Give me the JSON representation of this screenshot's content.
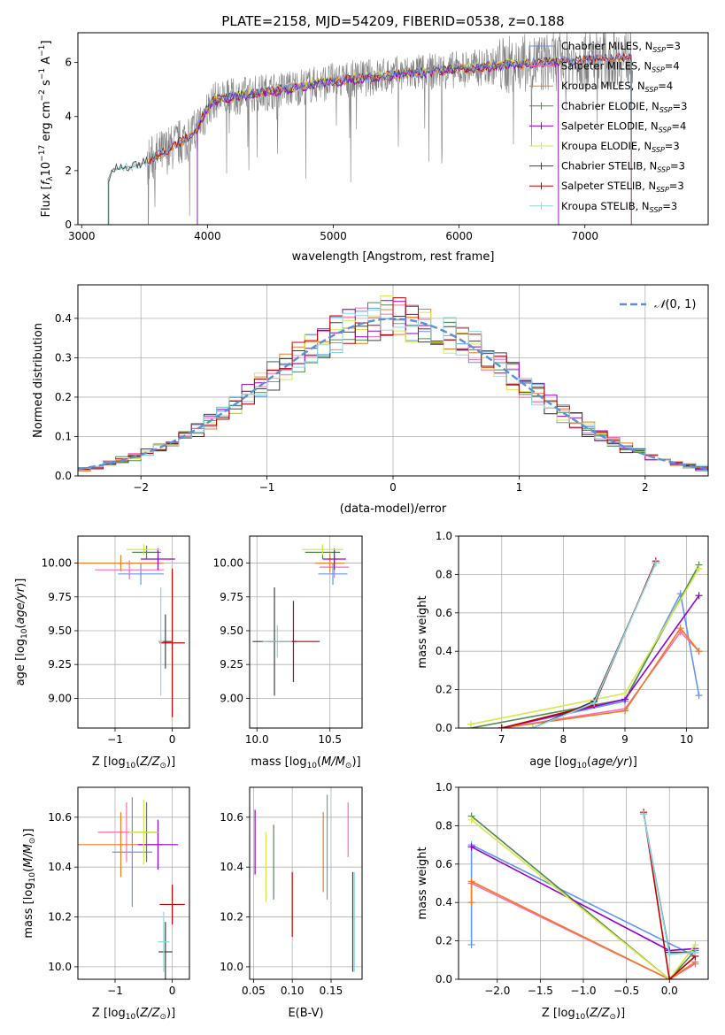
{
  "figure": {
    "title": "PLATE=2158, MJD=54209, FIBERID=0538, z=0.188"
  },
  "colors": {
    "chabrier_miles": "#6495ed",
    "salpeter_miles": "#ff69b4",
    "kroupa_miles": "#ee7b22",
    "chabrier_elodie": "#4f8a4f",
    "salpeter_elodie": "#9400d3",
    "kroupa_elodie": "#d8e84a",
    "chabrier_stelib": "#404040",
    "salpeter_stelib": "#c00000",
    "kroupa_stelib": "#88d8e0",
    "data": "#808080",
    "normal": "#5b8fd6",
    "grid": "#b0b0b0"
  },
  "legend": {
    "entries": [
      {
        "name": "Chabrier MILES",
        "suffix": "=3"
      },
      {
        "name": "Salpeter MILES",
        "suffix": "=4"
      },
      {
        "name": "Kroupa MILES",
        "suffix": "=4"
      },
      {
        "name": "Chabrier ELODIE",
        "suffix": "=3"
      },
      {
        "name": "Salpeter ELODIE",
        "suffix": "=4"
      },
      {
        "name": "Kroupa ELODIE",
        "suffix": "=3"
      },
      {
        "name": "Chabrier STELIB",
        "suffix": "=3"
      },
      {
        "name": "Salpeter STELIB",
        "suffix": "=3"
      },
      {
        "name": "Kroupa STELIB",
        "suffix": "=3"
      }
    ],
    "n_label": "N",
    "n_sub": "SSP",
    "normal_label": "(0, 1)"
  },
  "chart_data": [
    {
      "id": "spectrum",
      "type": "line",
      "xlabel": "wavelength [Angstrom, rest frame]",
      "ylabel": "Flux",
      "xlim": [
        2970,
        7980
      ],
      "ylim": [
        0,
        7.1
      ],
      "xticks": [
        3000,
        4000,
        5000,
        6000,
        7000
      ],
      "yticks": [
        0,
        2,
        4,
        6
      ],
      "grid": false,
      "legend_position": "right",
      "spectrum_start": 3210,
      "spectrum_end": 7380,
      "continuum": [
        [
          3210,
          1.7
        ],
        [
          3250,
          2.05
        ],
        [
          3400,
          2.15
        ],
        [
          3520,
          2.3
        ],
        [
          3600,
          2.55
        ],
        [
          3700,
          2.8
        ],
        [
          3800,
          3.1
        ],
        [
          3900,
          3.4
        ],
        [
          3950,
          3.9
        ],
        [
          4050,
          4.6
        ],
        [
          4300,
          4.8
        ],
        [
          4600,
          5.0
        ],
        [
          5000,
          5.3
        ],
        [
          5500,
          5.55
        ],
        [
          6000,
          5.75
        ],
        [
          6500,
          5.95
        ],
        [
          7000,
          6.1
        ],
        [
          7380,
          6.2
        ]
      ]
    },
    {
      "id": "residuals",
      "type": "bar",
      "xlabel": "(data-model)/error",
      "ylabel": "Normed distribution",
      "xlim": [
        -2.5,
        2.5
      ],
      "ylim": [
        0,
        0.485
      ],
      "xticks": [
        -2,
        -1,
        0,
        1,
        2
      ],
      "yticks": [
        0.0,
        0.1,
        0.2,
        0.3,
        0.4
      ],
      "grid": true,
      "legend_position": "top-right"
    },
    {
      "id": "age_vs_Z",
      "type": "scatter",
      "xlabel": "Z",
      "ylabel": "age",
      "xlim": [
        -1.65,
        0.3
      ],
      "ylim": [
        8.78,
        10.2
      ],
      "xticks": [
        -1,
        0
      ],
      "yticks": [
        9.0,
        9.25,
        9.5,
        9.75,
        10.0
      ],
      "grid": true,
      "points": [
        {
          "series": "chabrier_miles",
          "x": -0.55,
          "y": 9.92,
          "xerr": 0.4,
          "yerr": 0.08
        },
        {
          "series": "salpeter_miles",
          "x": -0.75,
          "y": 9.95,
          "xerr": 0.6,
          "yerr": 0.07
        },
        {
          "series": "kroupa_miles",
          "x": -0.9,
          "y": 10.0,
          "xerr": 0.75,
          "yerr": 0.06
        },
        {
          "series": "chabrier_elodie",
          "x": -0.45,
          "y": 10.08,
          "xerr": 0.25,
          "yerr": 0.05
        },
        {
          "series": "salpeter_elodie",
          "x": -0.25,
          "y": 10.03,
          "xerr": 0.3,
          "yerr": 0.08
        },
        {
          "series": "kroupa_elodie",
          "x": -0.5,
          "y": 10.1,
          "xerr": 0.3,
          "yerr": 0.04
        },
        {
          "series": "chabrier_stelib",
          "x": -0.12,
          "y": 9.42,
          "xerr": 0.12,
          "yerr": 0.2
        },
        {
          "series": "salpeter_stelib",
          "x": 0.0,
          "y": 9.41,
          "xerr": 0.22,
          "yerr": 0.55
        },
        {
          "series": "kroupa_stelib",
          "x": -0.2,
          "y": 9.42,
          "xerr": 0.04,
          "yerr": 0.4
        }
      ]
    },
    {
      "id": "age_vs_mass",
      "type": "scatter",
      "xlabel": "mass",
      "ylabel": "",
      "xlim": [
        9.95,
        10.72
      ],
      "ylim": [
        8.78,
        10.2
      ],
      "xticks": [
        10.0,
        10.5
      ],
      "yticks": [
        9.0,
        9.25,
        9.5,
        9.75,
        10.0
      ],
      "grid": true,
      "points": [
        {
          "series": "chabrier_miles",
          "x": 10.52,
          "y": 9.92,
          "xerr": 0.1,
          "yerr": 0.08
        },
        {
          "series": "salpeter_miles",
          "x": 10.53,
          "y": 9.97,
          "xerr": 0.1,
          "yerr": 0.08
        },
        {
          "series": "kroupa_miles",
          "x": 10.5,
          "y": 10.0,
          "xerr": 0.1,
          "yerr": 0.07
        },
        {
          "series": "chabrier_elodie",
          "x": 10.45,
          "y": 10.08,
          "xerr": 0.12,
          "yerr": 0.05
        },
        {
          "series": "salpeter_elodie",
          "x": 10.53,
          "y": 10.03,
          "xerr": 0.08,
          "yerr": 0.08
        },
        {
          "series": "kroupa_elodie",
          "x": 10.45,
          "y": 10.1,
          "xerr": 0.14,
          "yerr": 0.04
        },
        {
          "series": "chabrier_stelib",
          "x": 10.12,
          "y": 9.42,
          "xerr": 0.15,
          "yerr": 0.4
        },
        {
          "series": "salpeter_stelib",
          "x": 10.25,
          "y": 9.42,
          "xerr": 0.18,
          "yerr": 0.3
        },
        {
          "series": "kroupa_stelib",
          "x": 10.14,
          "y": 9.42,
          "xerr": 0.1,
          "yerr": 0.12
        }
      ]
    },
    {
      "id": "massweight_vs_age",
      "type": "line",
      "xlabel": "age",
      "ylabel": "mass weight",
      "xlim": [
        6.3,
        10.35
      ],
      "ylim": [
        0,
        1
      ],
      "xticks": [
        7,
        8,
        9,
        10
      ],
      "yticks": [
        0.0,
        0.2,
        0.4,
        0.6,
        0.8,
        1.0
      ],
      "grid": true,
      "series": [
        {
          "name": "chabrier_miles",
          "x": [
            7.0,
            9.0,
            9.9,
            10.2
          ],
          "y": [
            0.0,
            0.14,
            0.7,
            0.17
          ]
        },
        {
          "name": "salpeter_miles",
          "x": [
            7.0,
            9.0,
            9.9,
            10.2
          ],
          "y": [
            0.0,
            0.1,
            0.5,
            0.4
          ]
        },
        {
          "name": "kroupa_miles",
          "x": [
            7.0,
            9.0,
            9.9,
            10.2
          ],
          "y": [
            0.0,
            0.09,
            0.52,
            0.4
          ]
        },
        {
          "name": "chabrier_elodie",
          "x": [
            6.5,
            9.0,
            10.2
          ],
          "y": [
            0.0,
            0.15,
            0.85
          ]
        },
        {
          "name": "salpeter_elodie",
          "x": [
            7.0,
            9.0,
            10.2
          ],
          "y": [
            0.0,
            0.15,
            0.69
          ]
        },
        {
          "name": "kroupa_elodie",
          "x": [
            6.5,
            9.0,
            10.2
          ],
          "y": [
            0.02,
            0.18,
            0.83
          ]
        },
        {
          "name": "chabrier_stelib",
          "x": [
            7.5,
            8.5,
            9.5
          ],
          "y": [
            0.0,
            0.14,
            0.86
          ]
        },
        {
          "name": "salpeter_stelib",
          "x": [
            7.0,
            8.5,
            9.5
          ],
          "y": [
            0.0,
            0.12,
            0.87
          ]
        },
        {
          "name": "kroupa_stelib",
          "x": [
            7.5,
            8.5,
            9.5
          ],
          "y": [
            0.0,
            0.13,
            0.86
          ]
        }
      ]
    },
    {
      "id": "mass_vs_Z",
      "type": "scatter",
      "xlabel": "Z",
      "ylabel": "mass",
      "xlim": [
        -1.65,
        0.3
      ],
      "ylim": [
        9.95,
        10.72
      ],
      "xticks": [
        -1,
        0
      ],
      "yticks": [
        10.0,
        10.2,
        10.4,
        10.6
      ],
      "grid": true,
      "points": [
        {
          "series": "chabrier_miles",
          "x": -0.7,
          "y": 10.46,
          "xerr": 0.35,
          "yerr": 0.22
        },
        {
          "series": "salpeter_miles",
          "x": -0.8,
          "y": 10.54,
          "xerr": 0.5,
          "yerr": 0.12
        },
        {
          "series": "kroupa_miles",
          "x": -0.9,
          "y": 10.49,
          "xerr": 0.75,
          "yerr": 0.13
        },
        {
          "series": "chabrier_elodie",
          "x": -0.45,
          "y": 10.54,
          "xerr": 0.2,
          "yerr": 0.12
        },
        {
          "series": "salpeter_elodie",
          "x": -0.25,
          "y": 10.49,
          "xerr": 0.35,
          "yerr": 0.1
        },
        {
          "series": "kroupa_elodie",
          "x": -0.5,
          "y": 10.54,
          "xerr": 0.25,
          "yerr": 0.13
        },
        {
          "series": "chabrier_stelib",
          "x": -0.12,
          "y": 10.06,
          "xerr": 0.12,
          "yerr": 0.12
        },
        {
          "series": "salpeter_stelib",
          "x": 0.0,
          "y": 10.25,
          "xerr": 0.22,
          "yerr": 0.08
        },
        {
          "series": "kroupa_stelib",
          "x": -0.15,
          "y": 10.1,
          "xerr": 0.1,
          "yerr": 0.12
        }
      ]
    },
    {
      "id": "mass_vs_ebv",
      "type": "scatter",
      "xlabel": "E(B-V)",
      "ylabel": "",
      "xlim": [
        0.045,
        0.19
      ],
      "ylim": [
        9.95,
        10.72
      ],
      "xticks": [
        0.05,
        0.1,
        0.15
      ],
      "yticks": [
        10.0,
        10.2,
        10.4,
        10.6
      ],
      "grid": true,
      "points": [
        {
          "series": "chabrier_miles",
          "x": 0.145,
          "y": 10.48,
          "xerr": 0.0,
          "yerr": 0.21
        },
        {
          "series": "salpeter_miles",
          "x": 0.172,
          "y": 10.55,
          "xerr": 0.0,
          "yerr": 0.11
        },
        {
          "series": "kroupa_miles",
          "x": 0.14,
          "y": 10.46,
          "xerr": 0.0,
          "yerr": 0.16
        },
        {
          "series": "chabrier_elodie",
          "x": 0.076,
          "y": 10.42,
          "xerr": 0.0,
          "yerr": 0.15
        },
        {
          "series": "salpeter_elodie",
          "x": 0.052,
          "y": 10.5,
          "xerr": 0.0,
          "yerr": 0.13
        },
        {
          "series": "kroupa_elodie",
          "x": 0.066,
          "y": 10.4,
          "xerr": 0.0,
          "yerr": 0.14
        },
        {
          "series": "chabrier_stelib",
          "x": 0.178,
          "y": 10.18,
          "xerr": 0.0,
          "yerr": 0.2
        },
        {
          "series": "salpeter_stelib",
          "x": 0.1,
          "y": 10.25,
          "xerr": 0.0,
          "yerr": 0.13
        },
        {
          "series": "kroupa_stelib",
          "x": 0.18,
          "y": 10.18,
          "xerr": 0.0,
          "yerr": 0.2
        }
      ]
    },
    {
      "id": "massweight_vs_Z",
      "type": "line",
      "xlabel": "Z",
      "ylabel": "mass weight",
      "xlim": [
        -2.45,
        0.45
      ],
      "ylim": [
        0,
        1
      ],
      "xticks": [
        -2.0,
        -1.5,
        -1.0,
        -0.5,
        0.0
      ],
      "yticks": [
        0.0,
        0.2,
        0.4,
        0.6,
        0.8,
        1.0
      ],
      "grid": true,
      "series": [
        {
          "name": "chabrier_miles",
          "x": [
            -2.3,
            -2.3,
            0.3,
            0.0
          ],
          "y": [
            0.18,
            0.7,
            0.12,
            0.0
          ]
        },
        {
          "name": "salpeter_miles",
          "x": [
            -2.3,
            0.0,
            0.3
          ],
          "y": [
            0.5,
            0.0,
            0.08
          ]
        },
        {
          "name": "kroupa_miles",
          "x": [
            -2.3,
            -2.3,
            0.0,
            0.3
          ],
          "y": [
            0.4,
            0.51,
            0.0,
            0.09
          ]
        },
        {
          "name": "chabrier_elodie",
          "x": [
            -2.3,
            0.0,
            0.3
          ],
          "y": [
            0.85,
            0.0,
            0.15
          ]
        },
        {
          "name": "salpeter_elodie",
          "x": [
            -2.3,
            0.0,
            0.3
          ],
          "y": [
            0.69,
            0.15,
            0.16
          ]
        },
        {
          "name": "kroupa_elodie",
          "x": [
            -2.3,
            0.0,
            0.3
          ],
          "y": [
            0.83,
            0.0,
            0.18
          ]
        },
        {
          "name": "chabrier_stelib",
          "x": [
            -0.3,
            0.0,
            0.3
          ],
          "y": [
            0.86,
            0.14,
            0.14
          ]
        },
        {
          "name": "salpeter_stelib",
          "x": [
            -0.3,
            0.0,
            0.3
          ],
          "y": [
            0.87,
            0.0,
            0.12
          ]
        },
        {
          "name": "kroupa_stelib",
          "x": [
            -0.3,
            0.0,
            0.3
          ],
          "y": [
            0.86,
            0.13,
            0.14
          ]
        }
      ]
    }
  ]
}
